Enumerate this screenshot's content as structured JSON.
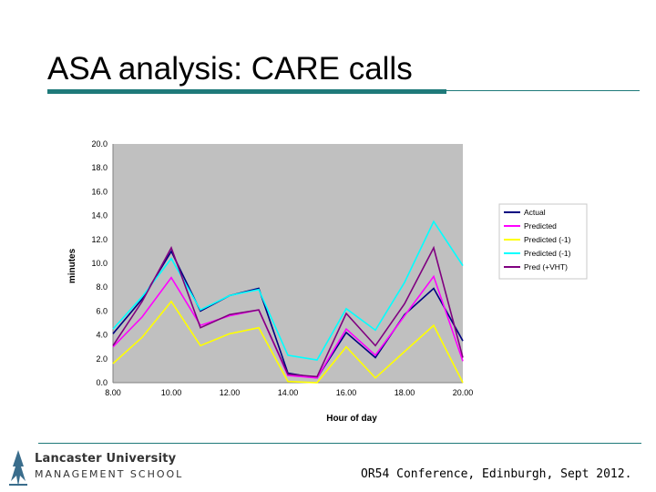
{
  "slide": {
    "title": "ASA analysis: CARE calls",
    "footer": "OR54 Conference, Edinburgh, Sept 2012.",
    "logo": {
      "line1": "Lancaster University",
      "line2": "Management School"
    }
  },
  "colors": {
    "accent_rule": "#1f7a7a",
    "plot_bg": "#c0c0c0"
  },
  "chart_data": {
    "type": "line",
    "xlabel": "Hour of day",
    "ylabel": "minutes",
    "xlim": [
      8,
      20
    ],
    "ylim": [
      0,
      20
    ],
    "x_ticks": [
      "8.00",
      "10.00",
      "12.00",
      "14.00",
      "16.00",
      "18.00",
      "20.00"
    ],
    "y_ticks": [
      "0.0",
      "2.0",
      "4.0",
      "6.0",
      "8.0",
      "10.0",
      "12.0",
      "14.0",
      "16.0",
      "18.0",
      "20.0"
    ],
    "grid": false,
    "legend_position": "right",
    "x": [
      8,
      9,
      10,
      11,
      12,
      13,
      14,
      15,
      16,
      17,
      18,
      19,
      20
    ],
    "series": [
      {
        "name": "Actual",
        "color": "#000080",
        "values": [
          4.1,
          7.0,
          11.0,
          6.0,
          7.3,
          7.9,
          0.8,
          0.4,
          4.2,
          2.1,
          5.7,
          7.9,
          3.5
        ]
      },
      {
        "name": "Predicted",
        "color": "#ff00ff",
        "values": [
          3.0,
          5.5,
          8.8,
          4.8,
          5.6,
          6.1,
          0.6,
          0.4,
          4.5,
          2.3,
          5.6,
          8.9,
          1.8
        ]
      },
      {
        "name": "Predicted (-1)",
        "color": "#ffff00",
        "values": [
          1.6,
          3.8,
          6.8,
          3.1,
          4.1,
          4.6,
          0.1,
          0.0,
          3.0,
          0.4,
          2.6,
          4.8,
          0.0
        ]
      },
      {
        "name": "Predicted (-1)",
        "color": "#00ffff",
        "values": [
          4.5,
          7.2,
          10.4,
          6.1,
          7.3,
          7.8,
          2.3,
          1.9,
          6.2,
          4.4,
          8.4,
          13.5,
          9.8
        ]
      },
      {
        "name": "Pred (+VHT)",
        "color": "#800080",
        "values": [
          3.1,
          6.8,
          11.3,
          4.6,
          5.7,
          6.1,
          0.7,
          0.5,
          5.8,
          3.1,
          6.6,
          11.3,
          2.1
        ]
      }
    ]
  }
}
